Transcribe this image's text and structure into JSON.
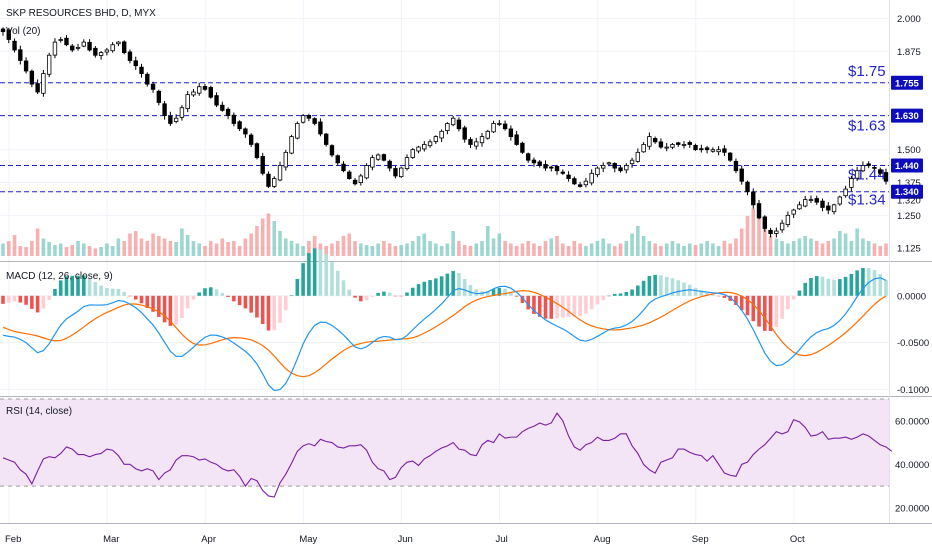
{
  "header": {
    "title": "SKP RESOURCES BHD, D, MYX",
    "volume_label": "Vol (20)",
    "macd_label": "MACD (12, 26, close, 9)",
    "rsi_label": "RSI (14, close)"
  },
  "colors": {
    "up": "#26a69a",
    "down": "#ef5350",
    "macd_line": "#2196f3",
    "signal_line": "#ff6d00",
    "rsi_line": "#7b1fa2",
    "rsi_band": "#f3e5f5",
    "level_line": "#1f1fd1",
    "level_text": "#2424c8"
  },
  "chart_data": [
    {
      "type": "candlestick",
      "title": "SKP RESOURCES BHD, D, MYX",
      "months": [
        "Feb",
        "Mar",
        "Apr",
        "May",
        "Jun",
        "Jul",
        "Aug",
        "Sep",
        "Oct"
      ],
      "price_axis_ticks": [
        "2.000",
        "1.875",
        "1.500",
        "1.375",
        "1.250",
        "1.125"
      ],
      "price_range": [
        1.095,
        2.04
      ],
      "close_series": [
        1.95,
        1.92,
        1.88,
        1.84,
        1.8,
        1.75,
        1.72,
        1.79,
        1.86,
        1.91,
        1.92,
        1.9,
        1.88,
        1.89,
        1.91,
        1.88,
        1.86,
        1.87,
        1.88,
        1.9,
        1.91,
        1.87,
        1.84,
        1.82,
        1.79,
        1.75,
        1.73,
        1.68,
        1.63,
        1.6,
        1.62,
        1.66,
        1.71,
        1.72,
        1.74,
        1.73,
        1.7,
        1.67,
        1.65,
        1.63,
        1.6,
        1.58,
        1.56,
        1.52,
        1.47,
        1.41,
        1.36,
        1.39,
        1.44,
        1.49,
        1.55,
        1.6,
        1.63,
        1.62,
        1.6,
        1.56,
        1.52,
        1.48,
        1.45,
        1.42,
        1.39,
        1.37,
        1.4,
        1.44,
        1.47,
        1.48,
        1.46,
        1.43,
        1.4,
        1.43,
        1.47,
        1.5,
        1.51,
        1.52,
        1.53,
        1.55,
        1.57,
        1.6,
        1.62,
        1.58,
        1.54,
        1.52,
        1.53,
        1.55,
        1.57,
        1.6,
        1.6,
        1.58,
        1.55,
        1.52,
        1.49,
        1.46,
        1.45,
        1.44,
        1.43,
        1.43,
        1.42,
        1.41,
        1.39,
        1.37,
        1.36,
        1.38,
        1.41,
        1.43,
        1.44,
        1.45,
        1.43,
        1.42,
        1.44,
        1.46,
        1.49,
        1.52,
        1.55,
        1.53,
        1.51,
        1.51,
        1.52,
        1.52,
        1.52,
        1.52,
        1.5,
        1.5,
        1.5,
        1.5,
        1.5,
        1.49,
        1.46,
        1.42,
        1.38,
        1.34,
        1.29,
        1.24,
        1.2,
        1.18,
        1.19,
        1.22,
        1.25,
        1.27,
        1.29,
        1.31,
        1.31,
        1.3,
        1.28,
        1.27,
        1.29,
        1.32,
        1.35,
        1.39,
        1.42,
        1.44,
        1.44,
        1.43,
        1.41,
        1.38
      ],
      "levels": [
        {
          "label": "$1.75",
          "tag": "1.755",
          "value": 1.755
        },
        {
          "label": "$1.63",
          "tag": "1.630",
          "value": 1.63
        },
        {
          "label": "$1.44",
          "tag": "1.440",
          "value": 1.44
        },
        {
          "label": "$1.34",
          "tag": "1.340",
          "value": 1.34
        }
      ],
      "price_badge": "1.320"
    },
    {
      "type": "bar",
      "title": "Vol (20)",
      "values": [
        0.25,
        0.3,
        0.42,
        0.2,
        0.18,
        0.3,
        0.55,
        0.35,
        0.28,
        0.22,
        0.25,
        0.18,
        0.22,
        0.3,
        0.25,
        0.2,
        0.15,
        0.18,
        0.25,
        0.2,
        0.35,
        0.3,
        0.45,
        0.5,
        0.35,
        0.3,
        0.45,
        0.4,
        0.35,
        0.3,
        0.28,
        0.55,
        0.42,
        0.3,
        0.25,
        0.2,
        0.3,
        0.25,
        0.35,
        0.28,
        0.3,
        0.2,
        0.35,
        0.45,
        0.6,
        0.75,
        0.85,
        0.7,
        0.5,
        0.35,
        0.3,
        0.25,
        0.2,
        0.3,
        0.4,
        0.25,
        0.2,
        0.25,
        0.3,
        0.4,
        0.45,
        0.3,
        0.25,
        0.22,
        0.2,
        0.25,
        0.3,
        0.25,
        0.2,
        0.22,
        0.25,
        0.3,
        0.4,
        0.45,
        0.3,
        0.25,
        0.2,
        0.25,
        0.5,
        0.3,
        0.22,
        0.2,
        0.25,
        0.3,
        0.6,
        0.35,
        0.45,
        0.3,
        0.25,
        0.2,
        0.25,
        0.3,
        0.25,
        0.2,
        0.3,
        0.35,
        0.4,
        0.25,
        0.2,
        0.3,
        0.25,
        0.2,
        0.25,
        0.3,
        0.35,
        0.25,
        0.2,
        0.25,
        0.3,
        0.45,
        0.6,
        0.4,
        0.3,
        0.25,
        0.2,
        0.25,
        0.3,
        0.25,
        0.2,
        0.25,
        0.22,
        0.25,
        0.3,
        0.25,
        0.2,
        0.3,
        0.25,
        0.35,
        0.55,
        0.8,
        0.95,
        0.75,
        0.6,
        0.4,
        0.35,
        0.3,
        0.25,
        0.3,
        0.35,
        0.4,
        0.35,
        0.3,
        0.25,
        0.3,
        0.35,
        0.5,
        0.45,
        0.3,
        0.55,
        0.35,
        0.3,
        0.25,
        0.2,
        0.25
      ]
    },
    {
      "type": "line",
      "title": "MACD (12, 26, close, 9)",
      "axis_ticks": [
        "0.0000",
        "-0.0500",
        "-0.1000"
      ],
      "y_range": [
        -0.105,
        0.034
      ],
      "series": [
        {
          "name": "MACD",
          "values": [
            -0.0421,
            -0.0434,
            -0.0441,
            -0.0466,
            -0.0501,
            -0.0556,
            -0.0608,
            -0.0586,
            -0.0513,
            -0.0409,
            -0.0313,
            -0.0246,
            -0.0206,
            -0.0164,
            -0.0115,
            -0.0098,
            -0.0099,
            -0.01,
            -0.0095,
            -0.0075,
            -0.005,
            -0.0059,
            -0.0089,
            -0.0128,
            -0.0179,
            -0.0246,
            -0.0311,
            -0.0399,
            -0.0497,
            -0.0593,
            -0.0647,
            -0.0648,
            -0.0603,
            -0.0551,
            -0.0492,
            -0.0443,
            -0.042,
            -0.0422,
            -0.044,
            -0.0466,
            -0.0506,
            -0.0549,
            -0.0593,
            -0.0651,
            -0.0729,
            -0.0835,
            -0.0952,
            -0.1012,
            -0.1003,
            -0.0936,
            -0.082,
            -0.0674,
            -0.0516,
            -0.0398,
            -0.0316,
            -0.0282,
            -0.0285,
            -0.0317,
            -0.0363,
            -0.0419,
            -0.0484,
            -0.0547,
            -0.0568,
            -0.0546,
            -0.0499,
            -0.0455,
            -0.0435,
            -0.0441,
            -0.0469,
            -0.0465,
            -0.0424,
            -0.0363,
            -0.0303,
            -0.0249,
            -0.0199,
            -0.0145,
            -0.0086,
            -0.0017,
            0.0054,
            0.0078,
            0.0063,
            0.0038,
            0.0024,
            0.0026,
            0.0041,
            0.0075,
            0.0099,
            0.0102,
            0.0081,
            0.0038,
            -0.0022,
            -0.0094,
            -0.0156,
            -0.0209,
            -0.0258,
            -0.0293,
            -0.0324,
            -0.0354,
            -0.0391,
            -0.0435,
            -0.0474,
            -0.0485,
            -0.0466,
            -0.0433,
            -0.0398,
            -0.0362,
            -0.0345,
            -0.0337,
            -0.0312,
            -0.0275,
            -0.0219,
            -0.0152,
            -0.0077,
            -0.0034,
            -0.001,
            0.0009,
            0.0031,
            0.0046,
            0.0057,
            0.0065,
            0.0056,
            0.0047,
            0.0039,
            0.0032,
            0.0027,
            0.0014,
            -0.0019,
            -0.0077,
            -0.0155,
            -0.0249,
            -0.0363,
            -0.0487,
            -0.0612,
            -0.0701,
            -0.0746,
            -0.0738,
            -0.0699,
            -0.0643,
            -0.0577,
            -0.0502,
            -0.0439,
            -0.0393,
            -0.0366,
            -0.035,
            -0.0317,
            -0.0264,
            -0.0193,
            -0.0106,
            -0.0009,
            0.0079,
            0.0142,
            0.0181,
            0.0192,
            0.0166
          ]
        },
        {
          "name": "Signal",
          "values": [
            -0.0335,
            -0.0361,
            -0.0381,
            -0.0394,
            -0.0405,
            -0.0416,
            -0.043,
            -0.045,
            -0.0469,
            -0.0482,
            -0.0478,
            -0.0455,
            -0.0419,
            -0.0378,
            -0.0333,
            -0.0286,
            -0.0245,
            -0.0209,
            -0.0178,
            -0.0151,
            -0.0123,
            -0.0099,
            -0.0087,
            -0.0088,
            -0.0099,
            -0.0116,
            -0.014,
            -0.0173,
            -0.0213,
            -0.0271,
            -0.0341,
            -0.0411,
            -0.0469,
            -0.0511,
            -0.0527,
            -0.0524,
            -0.0511,
            -0.0491,
            -0.0471,
            -0.0454,
            -0.0447,
            -0.0449,
            -0.0458,
            -0.0471,
            -0.0497,
            -0.0533,
            -0.0581,
            -0.0644,
            -0.0714,
            -0.0781,
            -0.0826,
            -0.0854,
            -0.0865,
            -0.0854,
            -0.0823,
            -0.0779,
            -0.0727,
            -0.0676,
            -0.063,
            -0.0585,
            -0.055,
            -0.0527,
            -0.0509,
            -0.0496,
            -0.0488,
            -0.0486,
            -0.0479,
            -0.0474,
            -0.0467,
            -0.0461,
            -0.0459,
            -0.0449,
            -0.0428,
            -0.0399,
            -0.0367,
            -0.0331,
            -0.0294,
            -0.0254,
            -0.0211,
            -0.0165,
            -0.0116,
            -0.0077,
            -0.0046,
            -0.0024,
            -0.0008,
            0.0004,
            0.0014,
            0.0024,
            0.0036,
            0.0047,
            0.0055,
            0.0052,
            0.0038,
            0.0016,
            -0.0014,
            -0.0047,
            -0.0083,
            -0.0122,
            -0.0167,
            -0.0214,
            -0.0257,
            -0.0294,
            -0.0321,
            -0.0341,
            -0.0353,
            -0.0363,
            -0.0365,
            -0.0362,
            -0.0353,
            -0.0342,
            -0.0329,
            -0.0312,
            -0.0289,
            -0.0258,
            -0.0228,
            -0.0193,
            -0.0156,
            -0.012,
            -0.0085,
            -0.0054,
            -0.0029,
            -0.001,
            0.0006,
            0.002,
            0.0031,
            0.0037,
            0.0035,
            0.0022,
            -0.0002,
            -0.0041,
            -0.0092,
            -0.0158,
            -0.0237,
            -0.0324,
            -0.0413,
            -0.0492,
            -0.0556,
            -0.0604,
            -0.0633,
            -0.064,
            -0.0629,
            -0.0604,
            -0.057,
            -0.0532,
            -0.0489,
            -0.0443,
            -0.0395,
            -0.034,
            -0.0281,
            -0.0218,
            -0.0154,
            -0.0093,
            -0.004,
            -0.0003
          ]
        }
      ]
    },
    {
      "type": "line",
      "title": "RSI (14, close)",
      "axis_ticks": [
        "60.0000",
        "40.0000",
        "20.0000"
      ],
      "y_range": [
        14.0,
        70.0
      ],
      "band": [
        30,
        70
      ],
      "series": [
        {
          "name": "RSI",
          "values": [
            43.0,
            42.0,
            41.0,
            37.5,
            35.5,
            31.0,
            37.0,
            42.5,
            43.5,
            43.0,
            45.0,
            48.0,
            47.0,
            44.5,
            44.5,
            43.5,
            44.5,
            45.0,
            47.0,
            46.5,
            44.0,
            40.0,
            40.0,
            38.0,
            37.0,
            38.0,
            37.0,
            33.0,
            36.0,
            37.5,
            42.0,
            44.0,
            44.0,
            43.5,
            42.0,
            42.5,
            41.0,
            40.0,
            38.0,
            37.0,
            37.5,
            34.5,
            30.0,
            33.5,
            32.5,
            28.0,
            25.5,
            25.0,
            31.5,
            35.5,
            40.5,
            46.0,
            48.5,
            49.5,
            48.5,
            51.5,
            50.5,
            50.0,
            48.0,
            47.5,
            48.5,
            48.5,
            49.0,
            46.5,
            41.0,
            38.0,
            37.0,
            33.0,
            34.0,
            38.5,
            41.0,
            41.5,
            39.5,
            42.5,
            44.0,
            46.0,
            47.5,
            48.5,
            50.0,
            47.0,
            46.5,
            44.5,
            44.0,
            49.0,
            51.0,
            50.0,
            54.0,
            52.0,
            52.5,
            52.5,
            55.0,
            56.5,
            57.5,
            59.0,
            58.0,
            59.0,
            63.5,
            60.0,
            53.0,
            48.0,
            46.5,
            49.0,
            50.0,
            52.5,
            51.0,
            51.0,
            52.0,
            54.0,
            54.0,
            48.5,
            45.0,
            40.0,
            37.5,
            36.0,
            41.0,
            42.0,
            43.0,
            47.0,
            47.0,
            45.5,
            44.5,
            44.0,
            41.5,
            44.0,
            40.0,
            36.0,
            35.0,
            34.5,
            40.0,
            41.0,
            44.5,
            47.0,
            49.0,
            52.0,
            55.0,
            54.0,
            55.0,
            60.5,
            59.5,
            57.0,
            53.0,
            53.5,
            55.0,
            51.5,
            52.0,
            52.0,
            52.5,
            51.5,
            52.5,
            54.0,
            53.0,
            51.0,
            49.0,
            48.0,
            46.0
          ]
        }
      ]
    }
  ]
}
